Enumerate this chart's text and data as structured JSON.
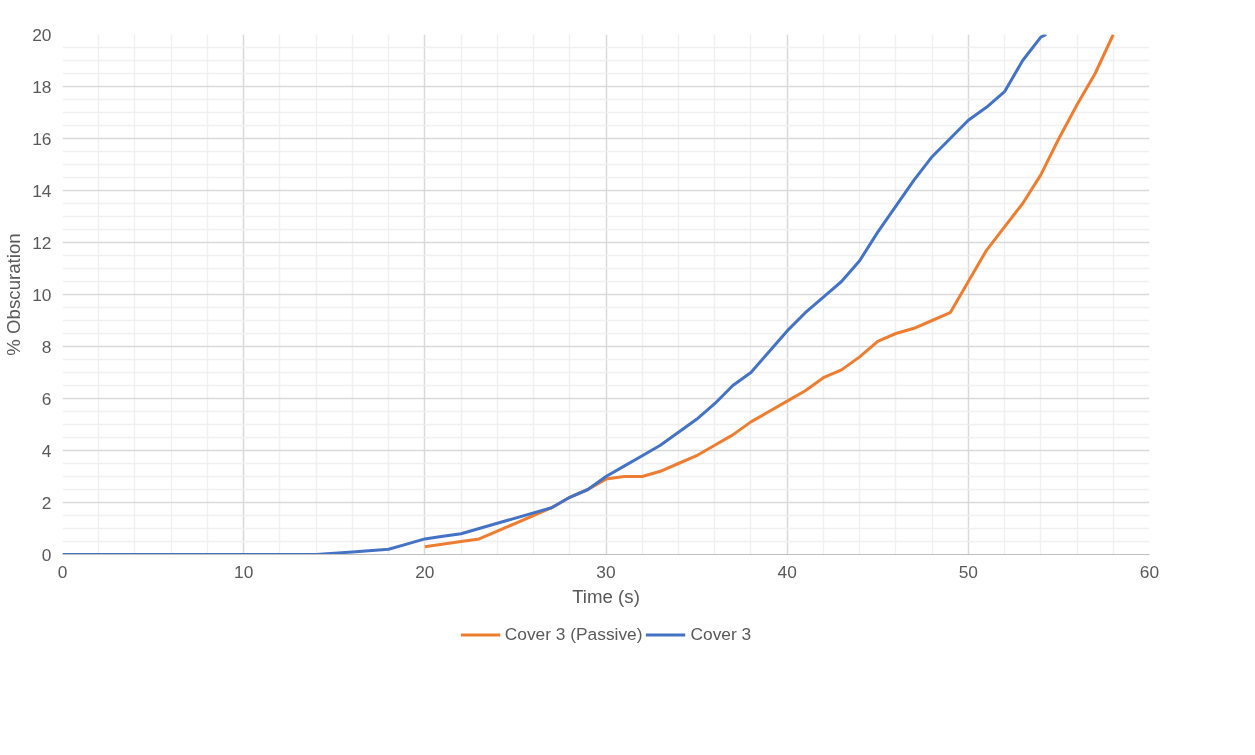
{
  "chart_data": {
    "type": "line",
    "xlabel": "Time (s)",
    "ylabel": "% Obscuration",
    "xlim": [
      0,
      60
    ],
    "xticks": [
      0,
      10,
      20,
      30,
      40,
      50,
      60
    ],
    "ylim": [
      0,
      20
    ],
    "yticks": [
      0,
      2,
      4,
      6,
      8,
      10,
      12,
      14,
      16,
      18,
      20
    ],
    "grid": true,
    "legend": "bottom",
    "line_style": "solid",
    "series": [
      {
        "name": "Cover 3 (Passive)",
        "color": "#ed7d31",
        "x": [
          20,
          22,
          23,
          24,
          25,
          26,
          27,
          28,
          29,
          30,
          31,
          32,
          33,
          34,
          35,
          36,
          37,
          38,
          39,
          40,
          41,
          42,
          43,
          44,
          45,
          46,
          47,
          48,
          49,
          50,
          51,
          52,
          53,
          54,
          55,
          56,
          57,
          58
        ],
        "values": [
          0.3,
          0.5,
          0.6,
          0.9,
          1.2,
          1.5,
          1.8,
          2.2,
          2.5,
          2.9,
          3.0,
          3.0,
          3.2,
          3.5,
          3.8,
          4.2,
          4.6,
          5.1,
          5.5,
          5.9,
          6.3,
          6.8,
          7.1,
          7.6,
          8.2,
          8.5,
          8.7,
          9.0,
          9.3,
          10.5,
          11.7,
          12.6,
          13.5,
          14.6,
          16.0,
          17.3,
          18.5,
          20
        ]
      },
      {
        "name": "Cover 3",
        "color": "#4472c4",
        "x": [
          0,
          14,
          16,
          18,
          19,
          20,
          21,
          22,
          23,
          24,
          25,
          26,
          27,
          28,
          29,
          30,
          31,
          32,
          33,
          34,
          35,
          36,
          37,
          38,
          39,
          40,
          41,
          42,
          43,
          44,
          45,
          46,
          47,
          48,
          49,
          50,
          51,
          52,
          53,
          54,
          54.3
        ],
        "values": [
          0,
          0,
          0.1,
          0.2,
          0.4,
          0.6,
          0.7,
          0.8,
          1.0,
          1.2,
          1.4,
          1.6,
          1.8,
          2.2,
          2.5,
          3.0,
          3.4,
          3.8,
          4.2,
          4.7,
          5.2,
          5.8,
          6.5,
          7.0,
          7.8,
          8.6,
          9.3,
          9.9,
          10.5,
          11.3,
          12.4,
          13.4,
          14.4,
          15.3,
          16.0,
          16.7,
          17.2,
          17.8,
          19.0,
          19.9,
          20
        ]
      }
    ]
  }
}
